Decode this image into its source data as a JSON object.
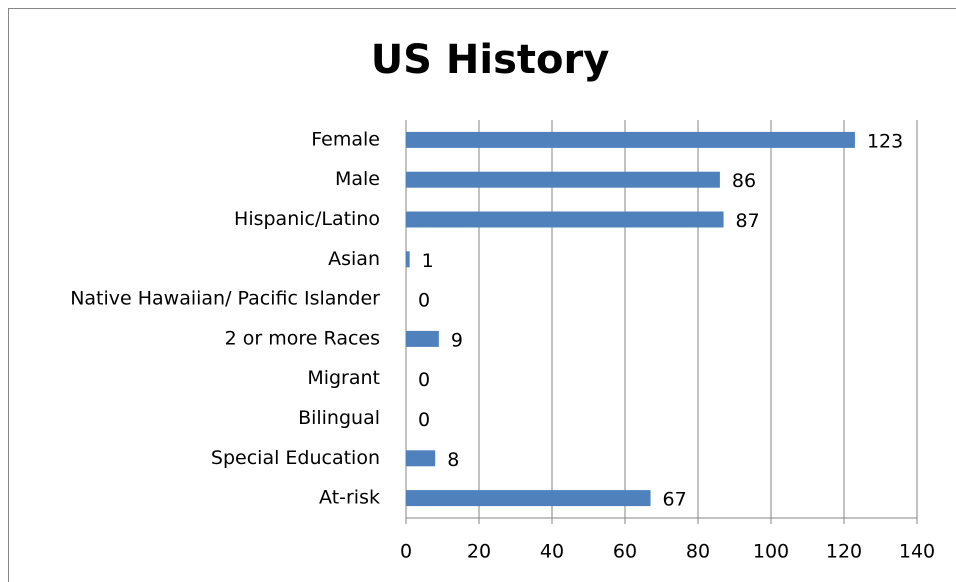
{
  "chart_data": {
    "type": "barh",
    "title": "US History",
    "categories": [
      "Female",
      "Male",
      "Hispanic/Latino",
      "Asian",
      "Native Hawaiian/ Pacific Islander",
      "2 or more Races",
      "Migrant",
      "Bilingual",
      "Special Education",
      "At-risk"
    ],
    "values": [
      123,
      86,
      87,
      1,
      0,
      9,
      0,
      0,
      8,
      67
    ],
    "color": "#4f81bd",
    "xlim": [
      0,
      140
    ],
    "xticks": [
      0,
      20,
      40,
      60,
      80,
      100,
      120,
      140
    ],
    "grid": true
  }
}
